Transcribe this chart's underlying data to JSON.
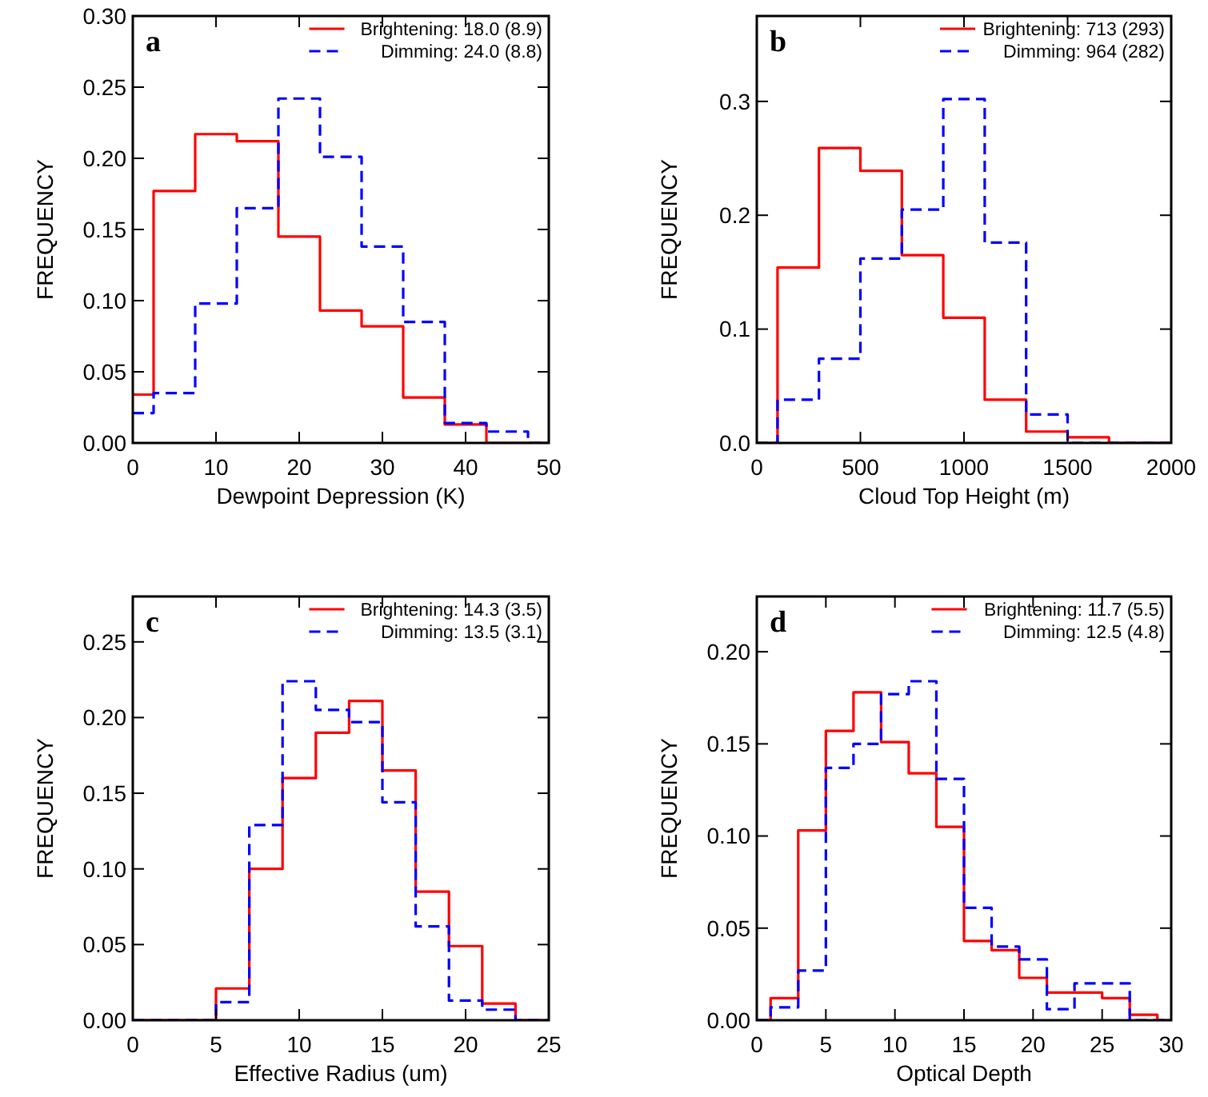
{
  "chart_data": [
    {
      "type": "histogram",
      "annotations": [
        "a"
      ],
      "xlabel": "Dewpoint Depression (K)",
      "ylabel": "FREQUENCY",
      "legend": "top right",
      "bins": [
        0,
        2.5,
        7.5,
        12.5,
        17.5,
        22.5,
        27.5,
        32.5,
        37.5,
        42.5,
        47.5,
        50
      ],
      "xlim": [
        0,
        50
      ],
      "xticks": [
        0,
        10,
        20,
        30,
        40,
        50
      ],
      "ylim": [
        0,
        0.3
      ],
      "yticks": [
        {
          "value": 0,
          "label": "0.00"
        },
        {
          "value": 0.05,
          "label": "0.05"
        },
        {
          "value": 0.1,
          "label": "0.10"
        },
        {
          "value": 0.15,
          "label": "0.15"
        },
        {
          "value": 0.2,
          "label": "0.20"
        },
        {
          "value": 0.25,
          "label": "0.25"
        },
        {
          "value": 0.3,
          "label": "0.30"
        }
      ],
      "series": [
        {
          "name": "Brightening: 18.0 (8.9)",
          "color": "#ff0000",
          "line_style": "solid",
          "values": [
            0.034,
            0.177,
            0.217,
            0.212,
            0.145,
            0.093,
            0.082,
            0.032,
            0.013,
            0,
            0
          ]
        },
        {
          "name": "Dimming: 24.0 (8.8)",
          "color": "#0000ff",
          "line_style": "dashed",
          "values": [
            0.021,
            0.035,
            0.098,
            0.165,
            0.242,
            0.201,
            0.138,
            0.085,
            0.014,
            0.008,
            0
          ]
        }
      ]
    },
    {
      "type": "histogram",
      "annotations": [
        "b"
      ],
      "xlabel": "Cloud Top Height (m)",
      "ylabel": "FREQUENCY",
      "legend": "top right",
      "bins": [
        0,
        100,
        300,
        500,
        700,
        900,
        1100,
        1300,
        1500,
        1700,
        1900,
        2000
      ],
      "xlim": [
        0,
        2000
      ],
      "xticks": [
        0,
        500,
        1000,
        1500,
        2000
      ],
      "ylim": [
        0,
        0.375
      ],
      "yticks": [
        {
          "value": 0,
          "label": "0.0"
        },
        0.1,
        0.2,
        0.3
      ],
      "series": [
        {
          "name": "Brightening: 713 (293)",
          "color": "#ff0000",
          "line_style": "solid",
          "values": [
            0,
            0.154,
            0.259,
            0.239,
            0.165,
            0.11,
            0.038,
            0.01,
            0.005,
            0,
            0
          ]
        },
        {
          "name": "Dimming: 964 (282)",
          "color": "#0000ff",
          "line_style": "dashed",
          "values": [
            0,
            0.038,
            0.074,
            0.162,
            0.205,
            0.302,
            0.176,
            0.025,
            0,
            0,
            0
          ]
        }
      ]
    },
    {
      "type": "histogram",
      "annotations": [
        "c"
      ],
      "xlabel": "Effective Radius (um)",
      "ylabel": "FREQUENCY",
      "legend": "top right",
      "bins": [
        0,
        1,
        3,
        5,
        7,
        9,
        11,
        13,
        15,
        17,
        19,
        21,
        23,
        25
      ],
      "xlim": [
        0,
        25
      ],
      "xticks": [
        0,
        5,
        10,
        15,
        20,
        25
      ],
      "ylim": [
        0,
        0.28
      ],
      "yticks": [
        {
          "value": 0,
          "label": "0.00"
        },
        {
          "value": 0.05,
          "label": "0.05"
        },
        {
          "value": 0.1,
          "label": "0.10"
        },
        {
          "value": 0.15,
          "label": "0.15"
        },
        {
          "value": 0.2,
          "label": "0.20"
        },
        {
          "value": 0.25,
          "label": "0.25"
        }
      ],
      "series": [
        {
          "name": "Brightening: 14.3 (3.5)",
          "color": "#ff0000",
          "line_style": "solid",
          "values": [
            0,
            0,
            0,
            0.021,
            0.1,
            0.16,
            0.19,
            0.211,
            0.165,
            0.085,
            0.049,
            0.011,
            0
          ]
        },
        {
          "name": "Dimming: 13.5 (3.1)",
          "color": "#0000ff",
          "line_style": "dashed",
          "values": [
            0,
            0,
            0,
            0.012,
            0.129,
            0.224,
            0.205,
            0.197,
            0.144,
            0.062,
            0.013,
            0.007,
            0
          ]
        }
      ]
    },
    {
      "type": "histogram",
      "annotations": [
        "d"
      ],
      "xlabel": "Optical Depth",
      "ylabel": "FREQUENCY",
      "legend": "top right",
      "bins": [
        0,
        1,
        3,
        5,
        7,
        9,
        11,
        13,
        15,
        17,
        19,
        21,
        23,
        25,
        27,
        29,
        30
      ],
      "xlim": [
        0,
        30
      ],
      "xticks": [
        0,
        5,
        10,
        15,
        20,
        25,
        30
      ],
      "ylim": [
        0,
        0.23
      ],
      "yticks": [
        {
          "value": 0,
          "label": "0.00"
        },
        {
          "value": 0.05,
          "label": "0.05"
        },
        {
          "value": 0.1,
          "label": "0.10"
        },
        {
          "value": 0.15,
          "label": "0.15"
        },
        {
          "value": 0.2,
          "label": "0.20"
        }
      ],
      "series": [
        {
          "name": "Brightening: 11.7 (5.5)",
          "color": "#ff0000",
          "line_style": "solid",
          "values": [
            0,
            0.012,
            0.103,
            0.157,
            0.178,
            0.151,
            0.134,
            0.105,
            0.043,
            0.038,
            0.023,
            0.015,
            0.015,
            0.012,
            0.003,
            0
          ]
        },
        {
          "name": "Dimming: 12.5 (4.8)",
          "color": "#0000ff",
          "line_style": "dashed",
          "values": [
            0,
            0.007,
            0.027,
            0.137,
            0.15,
            0.177,
            0.184,
            0.131,
            0.061,
            0.04,
            0.033,
            0.006,
            0.02,
            0.02,
            0,
            0
          ]
        }
      ]
    }
  ]
}
